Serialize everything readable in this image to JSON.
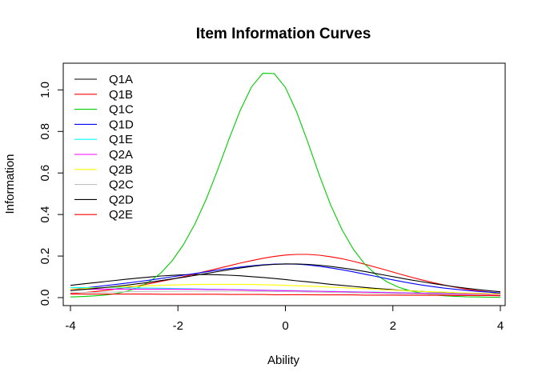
{
  "chart_data": {
    "type": "line",
    "title": "Item Information Curves",
    "xlabel": "Ability",
    "ylabel": "Information",
    "xlim": [
      -3.8,
      3.8
    ],
    "ylim": [
      0,
      1.09
    ],
    "x_ticks": [
      -4,
      -2,
      0,
      2,
      4
    ],
    "x_tick_labels": [
      "-4",
      "-2",
      "0",
      "2",
      "4"
    ],
    "y_ticks": [
      0.0,
      0.2,
      0.4,
      0.6,
      0.8,
      1.0
    ],
    "y_tick_labels": [
      "0.0",
      "0.2",
      "0.4",
      "0.6",
      "0.8",
      "1.0"
    ],
    "grid": false,
    "legend_position": "top-left",
    "x": [
      -3.8,
      -3.6,
      -3.4,
      -3.2,
      -3.0,
      -2.8,
      -2.6,
      -2.4,
      -2.2,
      -2.0,
      -1.8,
      -1.6,
      -1.4,
      -1.2,
      -1.0,
      -0.8,
      -0.6,
      -0.4,
      -0.2,
      0.0,
      0.2,
      0.4,
      0.6,
      0.8,
      1.0,
      1.2,
      1.4,
      1.6,
      1.8,
      2.0,
      2.2,
      2.4,
      2.6,
      2.8,
      3.0,
      3.2,
      3.4,
      3.6,
      3.8
    ],
    "series": [
      {
        "name": "Q1A",
        "color": "#000000",
        "values": [
          0.059,
          0.065,
          0.071,
          0.077,
          0.083,
          0.089,
          0.094,
          0.099,
          0.104,
          0.107,
          0.11,
          0.111,
          0.111,
          0.11,
          0.108,
          0.105,
          0.101,
          0.097,
          0.092,
          0.087,
          0.081,
          0.076,
          0.07,
          0.064,
          0.059,
          0.054,
          0.049,
          0.044,
          0.04,
          0.036,
          0.033,
          0.03,
          0.027,
          0.025,
          0.023,
          0.021,
          0.02,
          0.019,
          0.018
        ]
      },
      {
        "name": "Q1B",
        "color": "#ff0000",
        "values": [
          0.019,
          0.023,
          0.028,
          0.034,
          0.041,
          0.049,
          0.057,
          0.067,
          0.078,
          0.089,
          0.101,
          0.114,
          0.127,
          0.14,
          0.153,
          0.166,
          0.178,
          0.189,
          0.198,
          0.205,
          0.208,
          0.208,
          0.204,
          0.197,
          0.187,
          0.175,
          0.161,
          0.146,
          0.131,
          0.115,
          0.1,
          0.086,
          0.073,
          0.061,
          0.05,
          0.041,
          0.033,
          0.027,
          0.021
        ]
      },
      {
        "name": "Q1C",
        "color": "#00cd00",
        "values": [
          0.003,
          0.005,
          0.008,
          0.012,
          0.019,
          0.031,
          0.049,
          0.077,
          0.119,
          0.178,
          0.256,
          0.354,
          0.474,
          0.613,
          0.761,
          0.901,
          1.014,
          1.08,
          1.079,
          1.012,
          0.893,
          0.745,
          0.589,
          0.446,
          0.327,
          0.233,
          0.162,
          0.111,
          0.075,
          0.05,
          0.033,
          0.022,
          0.014,
          0.009,
          0.006,
          0.004,
          0.003,
          0.002,
          0.001
        ]
      },
      {
        "name": "Q1D",
        "color": "#0000ff",
        "values": [
          0.04,
          0.045,
          0.051,
          0.057,
          0.063,
          0.07,
          0.077,
          0.084,
          0.092,
          0.1,
          0.108,
          0.116,
          0.124,
          0.132,
          0.14,
          0.147,
          0.153,
          0.158,
          0.161,
          0.162,
          0.161,
          0.157,
          0.151,
          0.143,
          0.134,
          0.124,
          0.113,
          0.102,
          0.091,
          0.08,
          0.07,
          0.061,
          0.053,
          0.046,
          0.04,
          0.035,
          0.03,
          0.026,
          0.022
        ]
      },
      {
        "name": "Q1E",
        "color": "#00ffff",
        "values": [
          0.048,
          0.048,
          0.048,
          0.048,
          0.047,
          0.047,
          0.046,
          0.046,
          0.045,
          0.044,
          0.043,
          0.042,
          0.041,
          0.04,
          0.039,
          0.038,
          0.037,
          0.036,
          0.035,
          0.034,
          0.033,
          0.032,
          0.031,
          0.03,
          0.029,
          0.028,
          0.027,
          0.026,
          0.025,
          0.024,
          0.023,
          0.022,
          0.021,
          0.02,
          0.019,
          0.018,
          0.017,
          0.016,
          0.015
        ]
      },
      {
        "name": "Q2A",
        "color": "#ff00ff",
        "values": [
          0.04,
          0.04,
          0.04,
          0.041,
          0.041,
          0.041,
          0.041,
          0.041,
          0.041,
          0.041,
          0.04,
          0.04,
          0.039,
          0.039,
          0.038,
          0.037,
          0.036,
          0.035,
          0.034,
          0.033,
          0.032,
          0.031,
          0.03,
          0.029,
          0.028,
          0.027,
          0.026,
          0.025,
          0.024,
          0.023,
          0.022,
          0.021,
          0.02,
          0.019,
          0.018,
          0.017,
          0.016,
          0.015,
          0.014
        ]
      },
      {
        "name": "Q2B",
        "color": "#ffff00",
        "values": [
          0.041,
          0.043,
          0.046,
          0.048,
          0.051,
          0.053,
          0.055,
          0.057,
          0.059,
          0.061,
          0.062,
          0.063,
          0.064,
          0.064,
          0.064,
          0.064,
          0.063,
          0.062,
          0.061,
          0.059,
          0.057,
          0.055,
          0.053,
          0.05,
          0.048,
          0.045,
          0.043,
          0.04,
          0.037,
          0.035,
          0.032,
          0.03,
          0.028,
          0.026,
          0.024,
          0.022,
          0.02,
          0.019,
          0.017
        ]
      },
      {
        "name": "Q2C",
        "color": "#bebebe",
        "values": [
          0.023,
          0.024,
          0.025,
          0.026,
          0.027,
          0.028,
          0.029,
          0.03,
          0.03,
          0.031,
          0.031,
          0.031,
          0.031,
          0.031,
          0.031,
          0.031,
          0.03,
          0.03,
          0.029,
          0.029,
          0.028,
          0.027,
          0.026,
          0.025,
          0.024,
          0.023,
          0.022,
          0.021,
          0.02,
          0.019,
          0.018,
          0.017,
          0.016,
          0.015,
          0.014,
          0.013,
          0.013,
          0.012,
          0.011
        ]
      },
      {
        "name": "Q2D",
        "color": "#000000",
        "values": [
          0.034,
          0.038,
          0.043,
          0.048,
          0.054,
          0.06,
          0.067,
          0.074,
          0.082,
          0.09,
          0.098,
          0.107,
          0.116,
          0.125,
          0.134,
          0.142,
          0.15,
          0.156,
          0.16,
          0.162,
          0.162,
          0.16,
          0.156,
          0.15,
          0.143,
          0.135,
          0.126,
          0.116,
          0.106,
          0.096,
          0.086,
          0.077,
          0.068,
          0.06,
          0.052,
          0.045,
          0.039,
          0.033,
          0.028
        ]
      },
      {
        "name": "Q2E",
        "color": "#ff0000",
        "values": [
          0.017,
          0.017,
          0.017,
          0.017,
          0.017,
          0.017,
          0.017,
          0.017,
          0.016,
          0.016,
          0.016,
          0.016,
          0.016,
          0.016,
          0.015,
          0.015,
          0.015,
          0.015,
          0.014,
          0.014,
          0.014,
          0.014,
          0.013,
          0.013,
          0.013,
          0.013,
          0.012,
          0.012,
          0.012,
          0.012,
          0.011,
          0.011,
          0.011,
          0.011,
          0.01,
          0.01,
          0.01,
          0.01,
          0.009
        ]
      }
    ]
  }
}
